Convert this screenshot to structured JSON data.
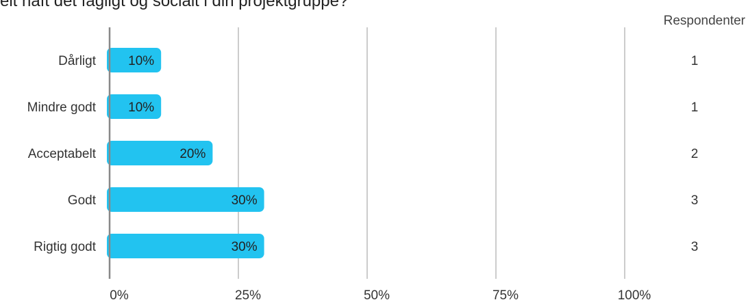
{
  "title": "eit haft det fagligt og socialt i din projektgruppe?",
  "respondents_header": "Respondenter",
  "colors": {
    "bar": "#22C3F0",
    "grid": "#aaaaaa",
    "axis": "#888888",
    "text": "#333333"
  },
  "chart_data": {
    "type": "bar",
    "orientation": "horizontal",
    "categories": [
      "Dårligt",
      "Mindre godt",
      "Acceptabelt",
      "Godt",
      "Rigtig godt"
    ],
    "values": [
      10,
      10,
      20,
      30,
      30
    ],
    "value_labels": [
      "10%",
      "10%",
      "20%",
      "30%",
      "30%"
    ],
    "respondents": [
      1,
      1,
      2,
      3,
      3
    ],
    "xlim": [
      0,
      100
    ],
    "xticks": [
      0,
      25,
      50,
      75,
      100
    ],
    "xtick_labels": [
      "0%",
      "25%",
      "50%",
      "75%",
      "100%"
    ],
    "grid": true
  }
}
